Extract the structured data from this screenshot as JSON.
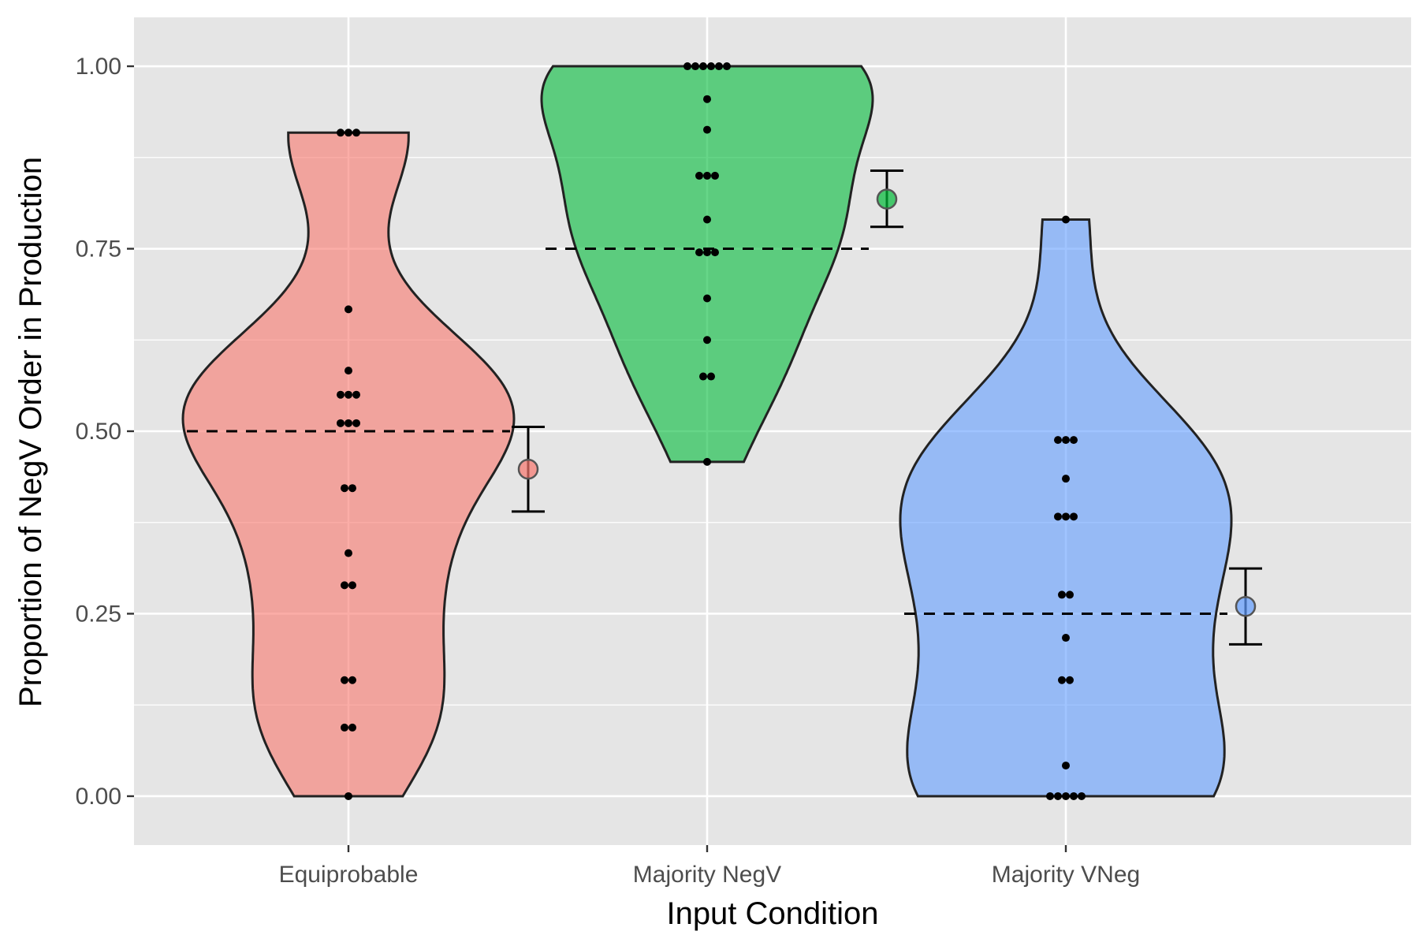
{
  "chart_data": {
    "type": "violin",
    "xlabel": "Input Condition",
    "ylabel": "Proportion of NegV Order in Production",
    "ylim": [
      -0.067,
      1.067
    ],
    "yticks": [
      0.0,
      0.25,
      0.5,
      0.75,
      1.0
    ],
    "ytick_labels": [
      "0.00",
      "0.25",
      "0.50",
      "0.75",
      "1.00"
    ],
    "categories": [
      "Equiprobable",
      "Majority NegV",
      "Majority VNeg"
    ],
    "colors": [
      "#F8766D",
      "#00BA38",
      "#619CFF"
    ],
    "grid": true,
    "legend": "none",
    "groups": [
      {
        "name": "Equiprobable",
        "reference_line": 0.5,
        "mean": 0.448,
        "error_low": 0.39,
        "error_high": 0.506,
        "points": [
          0.909,
          0.909,
          0.909,
          0.667,
          0.583,
          0.55,
          0.55,
          0.55,
          0.511,
          0.511,
          0.511,
          0.422,
          0.422,
          0.333,
          0.289,
          0.289,
          0.159,
          0.159,
          0.094,
          0.094,
          0.0
        ]
      },
      {
        "name": "Majority NegV",
        "reference_line": 0.75,
        "mean": 0.818,
        "error_low": 0.78,
        "error_high": 0.857,
        "points": [
          1.0,
          1.0,
          1.0,
          1.0,
          1.0,
          1.0,
          0.955,
          0.913,
          0.85,
          0.85,
          0.85,
          0.79,
          0.745,
          0.745,
          0.745,
          0.682,
          0.625,
          0.575,
          0.575,
          0.458
        ]
      },
      {
        "name": "Majority VNeg",
        "reference_line": 0.25,
        "mean": 0.26,
        "error_low": 0.208,
        "error_high": 0.312,
        "points": [
          0.79,
          0.488,
          0.488,
          0.488,
          0.435,
          0.383,
          0.383,
          0.383,
          0.276,
          0.276,
          0.217,
          0.159,
          0.159,
          0.042,
          0.0,
          0.0,
          0.0,
          0.0,
          0.0
        ]
      }
    ]
  }
}
